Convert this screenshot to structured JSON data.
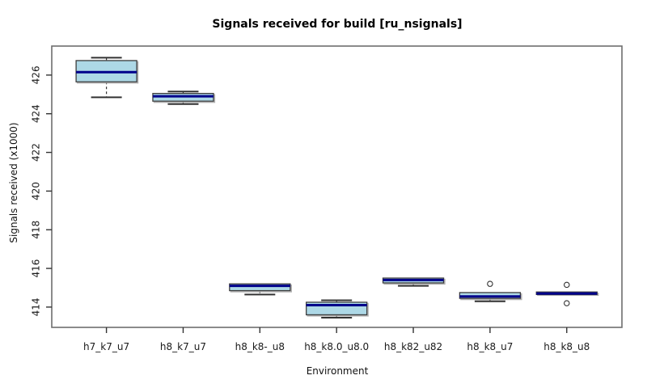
{
  "figure": {
    "kind": "r-boxplot-figure"
  },
  "colors": {
    "background": "#ffffff",
    "box_fill": "#ADD8E6",
    "box_border": "#3c3c3c",
    "box_shadow": "#aaaaaa",
    "median": "#00008B",
    "whisker": "#333333",
    "frame": "#6e6e6e",
    "tick": "#333333",
    "text": "#111111",
    "outlier_stroke": "#333333"
  },
  "chart_data": {
    "type": "boxplot",
    "title": "Signals received for build [ru_nsignals]",
    "xlabel": "Environment",
    "ylabel": "Signals received (x1000)",
    "categories": [
      "h7_k7_u7",
      "h8_k7_u7",
      "h8_k8-_u8",
      "h8_k8.0_u8.0",
      "h8_k82_u82",
      "h8_k8_u7",
      "h8_k8_u8"
    ],
    "yticks": [
      414,
      416,
      418,
      420,
      422,
      424,
      426
    ],
    "ylim": [
      412.95,
      427.5
    ],
    "grid": false,
    "legend": "none",
    "series": [
      {
        "name": "h7_k7_u7",
        "min": 424.85,
        "q1": 425.65,
        "median": 426.15,
        "q3": 426.75,
        "max": 426.9,
        "outliers": []
      },
      {
        "name": "h8_k7_u7",
        "min": 424.5,
        "q1": 424.65,
        "median": 424.9,
        "q3": 425.05,
        "max": 425.15,
        "outliers": []
      },
      {
        "name": "h8_k8-_u8",
        "min": 414.65,
        "q1": 414.85,
        "median": 415.1,
        "q3": 415.2,
        "max": 415.2,
        "outliers": []
      },
      {
        "name": "h8_k8.0_u8.0",
        "min": 413.45,
        "q1": 413.6,
        "median": 414.1,
        "q3": 414.25,
        "max": 414.35,
        "outliers": []
      },
      {
        "name": "h8_k82_u82",
        "min": 415.1,
        "q1": 415.25,
        "median": 415.4,
        "q3": 415.5,
        "max": 415.5,
        "outliers": []
      },
      {
        "name": "h8_k8_u7",
        "min": 414.3,
        "q1": 414.45,
        "median": 414.55,
        "q3": 414.75,
        "max": 414.75,
        "outliers": [
          415.2
        ]
      },
      {
        "name": "h8_k8_u8",
        "min": 414.65,
        "q1": 414.65,
        "median": 414.7,
        "q3": 414.78,
        "max": 414.78,
        "outliers": [
          415.15,
          414.2
        ]
      }
    ]
  }
}
